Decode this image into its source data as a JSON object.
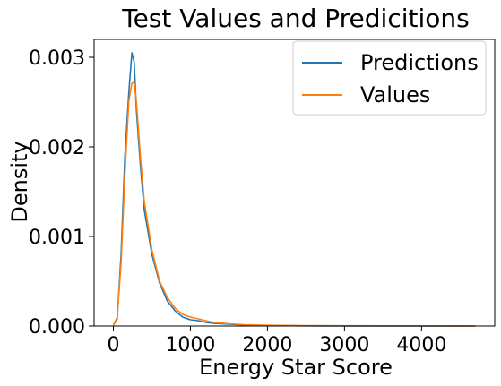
{
  "chart_data": {
    "type": "line",
    "title": "Test Values and Predicitions",
    "xlabel": "Energy Star Score",
    "ylabel": "Density",
    "xlim": [
      -250,
      4950
    ],
    "ylim": [
      0,
      0.0032
    ],
    "x_ticks": [
      0,
      1000,
      2000,
      3000,
      4000
    ],
    "x_tick_labels": [
      "0",
      "1000",
      "2000",
      "3000",
      "4000"
    ],
    "y_ticks": [
      0,
      0.001,
      0.002,
      0.003
    ],
    "y_tick_labels": [
      "0.000",
      "0.001",
      "0.002",
      "0.003"
    ],
    "grid": false,
    "legend_position": "top-right",
    "series": [
      {
        "name": "Predictions",
        "color": "#1f77b4",
        "x": [
          0,
          50,
          100,
          150,
          200,
          240,
          270,
          300,
          350,
          400,
          500,
          600,
          700,
          800,
          900,
          1000,
          1100,
          1200,
          1300,
          1500,
          1700,
          2000,
          2500,
          3000,
          3500,
          4000,
          4500,
          4700
        ],
        "y": [
          1e-05,
          8e-05,
          0.0008,
          0.0019,
          0.0026,
          0.00305,
          0.00295,
          0.0024,
          0.0018,
          0.0013,
          0.0008,
          0.00048,
          0.00028,
          0.00017,
          0.0001,
          7e-05,
          6e-05,
          4e-05,
          3e-05,
          2e-05,
          1.2e-05,
          6e-06,
          2e-06,
          1e-06,
          1e-06,
          1e-06,
          5e-07,
          0
        ]
      },
      {
        "name": "Values",
        "color": "#ff7f0e",
        "x": [
          0,
          50,
          100,
          150,
          200,
          240,
          270,
          300,
          350,
          400,
          500,
          600,
          700,
          800,
          900,
          1000,
          1100,
          1200,
          1300,
          1500,
          1700,
          2000,
          2500,
          3000,
          3500,
          4000,
          4500,
          4700
        ],
        "y": [
          1e-05,
          0.0001,
          0.0007,
          0.0017,
          0.0025,
          0.00271,
          0.00272,
          0.0025,
          0.0019,
          0.0014,
          0.00085,
          0.0005,
          0.00032,
          0.0002,
          0.00013,
          0.0001,
          8e-05,
          6e-05,
          4e-05,
          2.5e-05,
          1.5e-05,
          8e-06,
          4e-06,
          3e-06,
          2e-06,
          2e-06,
          1e-06,
          0
        ]
      }
    ]
  }
}
